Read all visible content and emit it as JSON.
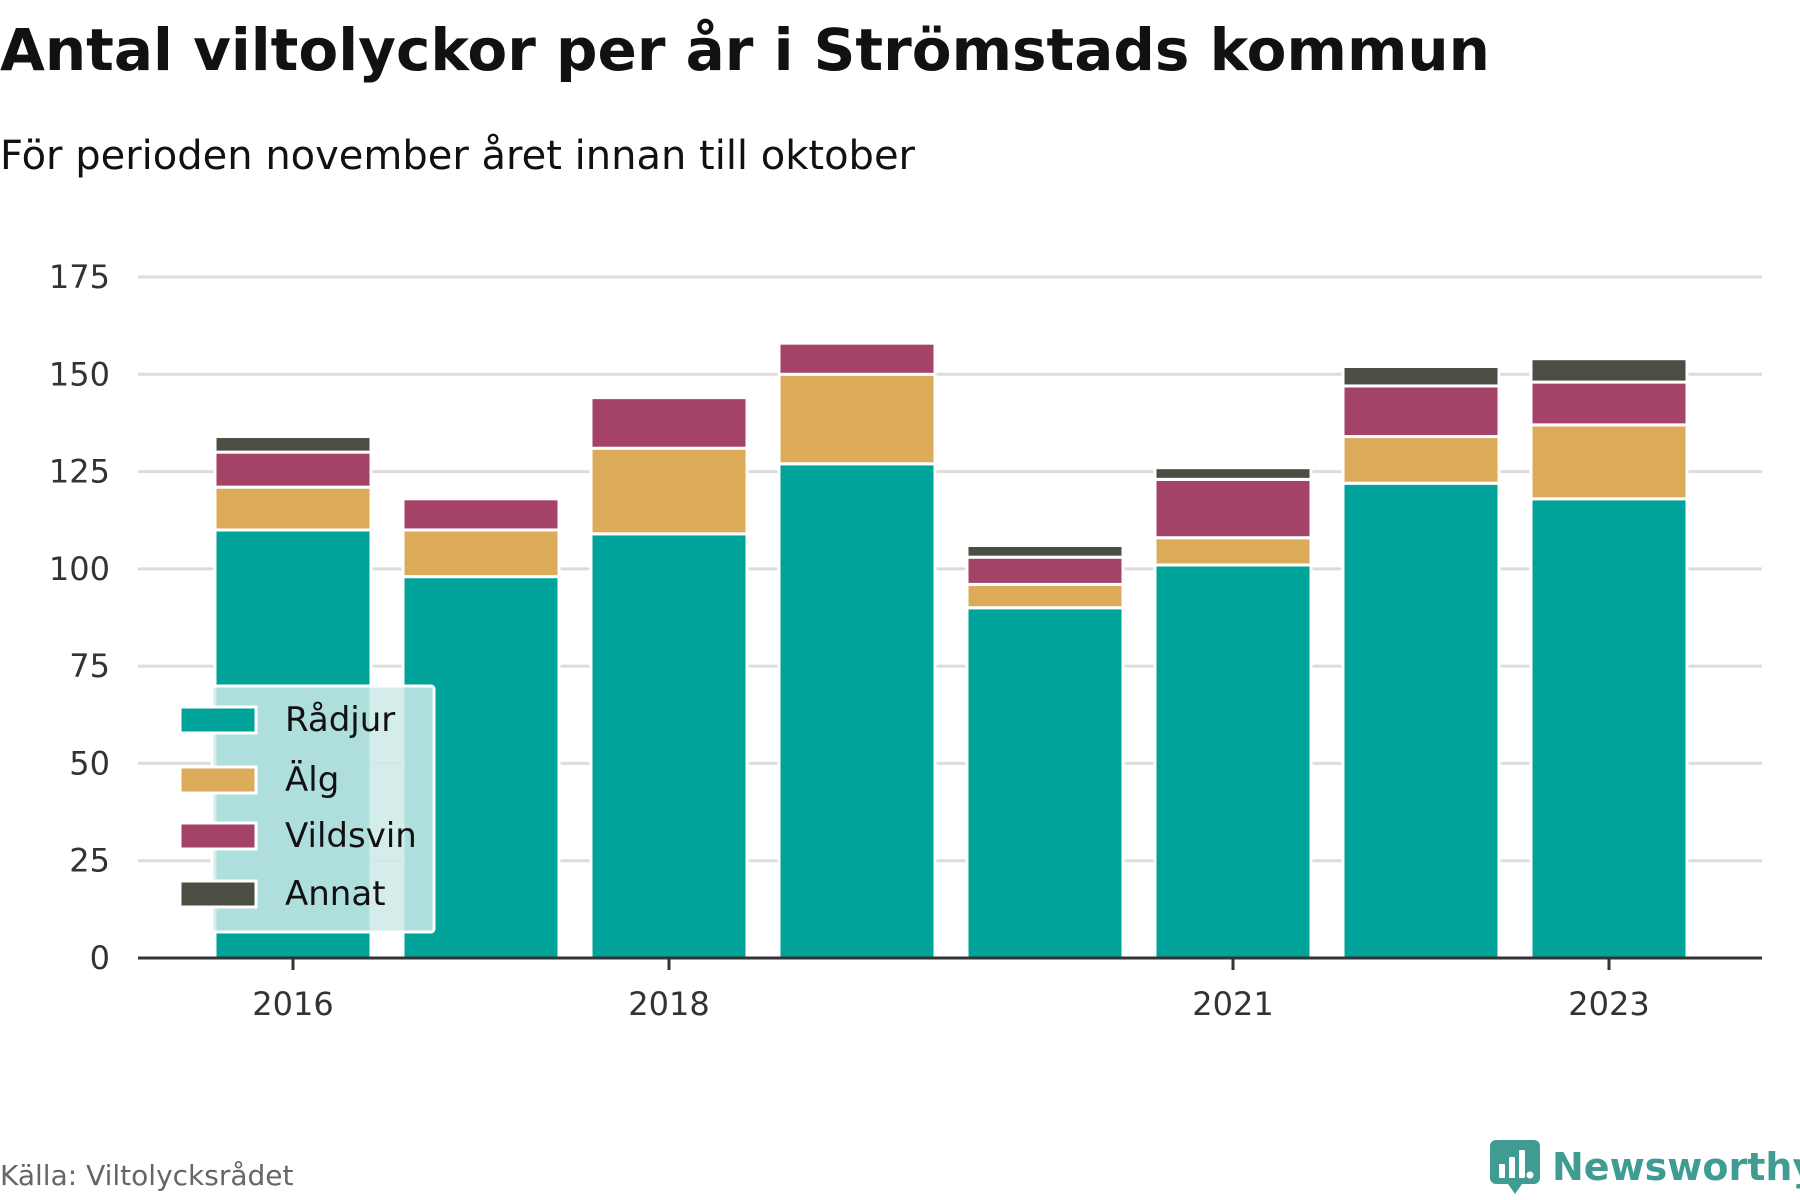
{
  "title": "Antal viltolyckor per år i Strömstads kommun",
  "subtitle": "För perioden november året innan till oktober",
  "source": "Källa: Viltolycksrådet",
  "brand": "Newsworthy",
  "colors": {
    "Rådjur": "#00a39a",
    "Älg": "#dbab59",
    "Vildsvin": "#a54268",
    "Annat": "#4b4e42",
    "grid": "#dcdcdc",
    "axis": "#333333",
    "legend_bg": "#cdeae8",
    "brand": "#409c92"
  },
  "chart_data": {
    "type": "bar",
    "stacked": true,
    "categories": [
      "2016",
      "2017",
      "2018",
      "2019",
      "2020",
      "2021",
      "2022",
      "2023"
    ],
    "x_tick_labels": [
      "2016",
      "",
      "2018",
      "",
      "",
      "2021",
      "",
      "2023"
    ],
    "series": [
      {
        "name": "Rådjur",
        "values": [
          110,
          98,
          109,
          127,
          90,
          101,
          122,
          118
        ]
      },
      {
        "name": "Älg",
        "values": [
          11,
          12,
          22,
          23,
          6,
          7,
          12,
          19
        ]
      },
      {
        "name": "Vildsvin",
        "values": [
          9,
          8,
          13,
          8,
          7,
          15,
          13,
          11
        ]
      },
      {
        "name": "Annat",
        "values": [
          4,
          0,
          0,
          0,
          3,
          3,
          5,
          6
        ]
      }
    ],
    "yticks": [
      0,
      25,
      50,
      75,
      100,
      125,
      150,
      175
    ],
    "ylim": [
      0,
      175
    ],
    "grid": true,
    "legend_position": "bottom-left inside"
  }
}
